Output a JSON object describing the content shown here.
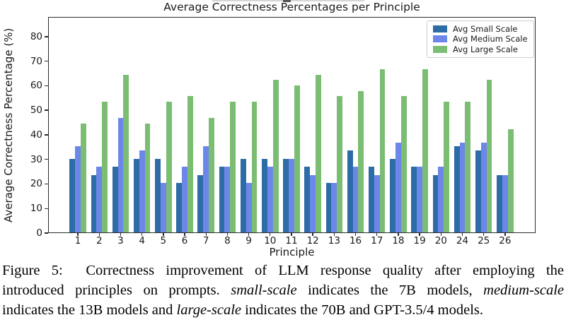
{
  "chart_data": {
    "type": "bar",
    "title": "Average Correctness Percentages per Principle",
    "xlabel": "Principle",
    "ylabel": "Average Correctness Percentage (%)",
    "ylim": [
      0,
      88
    ],
    "yticks": [
      0,
      10,
      20,
      30,
      40,
      50,
      60,
      70,
      80
    ],
    "grid": false,
    "legend_position": "top-right",
    "categories": [
      "1",
      "2",
      "3",
      "4",
      "5",
      "6",
      "7",
      "8",
      "9",
      "10",
      "11",
      "12",
      "13",
      "16",
      "17",
      "18",
      "19",
      "20",
      "24",
      "25",
      "26"
    ],
    "series": [
      {
        "name": "Avg Small Scale",
        "color": "#2d6ca6",
        "values": [
          30,
          23.3,
          26.7,
          30,
          30,
          20,
          23.3,
          26.7,
          30,
          30,
          30,
          26.7,
          20,
          33.3,
          26.7,
          30,
          26.7,
          23.3,
          35,
          33.3,
          23.3
        ]
      },
      {
        "name": "Avg Medium Scale",
        "color": "#6d87e9",
        "values": [
          35,
          26.7,
          46.7,
          33.3,
          20,
          26.7,
          35,
          26.7,
          20,
          26.7,
          30,
          23.3,
          20,
          26.7,
          23.3,
          36.7,
          26.7,
          26.7,
          36.7,
          36.7,
          23.3
        ]
      },
      {
        "name": "Avg Large Scale",
        "color": "#7cbd74",
        "values": [
          44.4,
          53.3,
          64.4,
          44.4,
          53.3,
          55.6,
          46.7,
          53.3,
          53.3,
          62.2,
          60,
          64.4,
          55.6,
          57.8,
          66.7,
          55.6,
          66.7,
          53.3,
          53.3,
          62.2,
          42.2
        ]
      }
    ]
  },
  "caption": {
    "lines": [
      {
        "last": false,
        "segments": [
          {
            "text": "Figure 5:  Correctness improvement of LLM response quality after employing the",
            "italic": false
          }
        ]
      },
      {
        "last": false,
        "segments": [
          {
            "text": "introduced principles on prompts. ",
            "italic": false
          },
          {
            "text": "small-scale",
            "italic": true
          },
          {
            "text": " indicates the 7B models, ",
            "italic": false
          },
          {
            "text": "medium-scale",
            "italic": true
          }
        ]
      },
      {
        "last": true,
        "segments": [
          {
            "text": "indicates the 13B models and ",
            "italic": false
          },
          {
            "text": "large-scale",
            "italic": true
          },
          {
            "text": " indicates the 70B and GPT-3.5/4 models.",
            "italic": false
          }
        ]
      }
    ]
  }
}
